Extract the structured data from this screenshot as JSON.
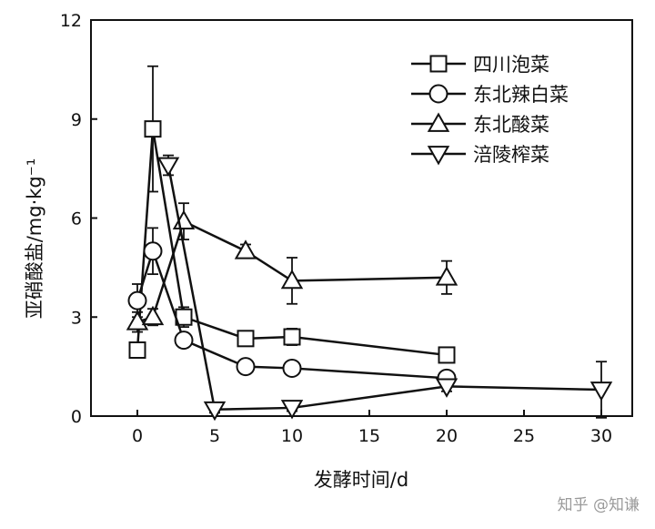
{
  "chart_data": {
    "type": "line",
    "xlabel": "发酵时间/d",
    "ylabel": "亚硝酸盐/mg·kg⁻¹",
    "xlim": [
      -3,
      32
    ],
    "ylim": [
      0,
      12
    ],
    "xticks": [
      0,
      5,
      10,
      15,
      20,
      25,
      30
    ],
    "yticks": [
      0,
      3,
      6,
      9,
      12
    ],
    "legend_position": "top-right",
    "grid": false,
    "series": [
      {
        "name": "四川泡菜",
        "marker": "square",
        "points": [
          {
            "x": 0,
            "y": 2.0,
            "err": 0
          },
          {
            "x": 1,
            "y": 8.7,
            "err": 1.9
          },
          {
            "x": 3,
            "y": 3.0,
            "err": 0.3
          },
          {
            "x": 7,
            "y": 2.35,
            "err": 0.2
          },
          {
            "x": 10,
            "y": 2.4,
            "err": 0.25
          },
          {
            "x": 20,
            "y": 1.85,
            "err": 0.2
          }
        ]
      },
      {
        "name": "东北辣白菜",
        "marker": "circle",
        "points": [
          {
            "x": 0,
            "y": 3.5,
            "err": 0.5
          },
          {
            "x": 1,
            "y": 5.0,
            "err": 0.7
          },
          {
            "x": 3,
            "y": 2.3,
            "err": 0.15
          },
          {
            "x": 7,
            "y": 1.5,
            "err": 0.15
          },
          {
            "x": 10,
            "y": 1.45,
            "err": 0.15
          },
          {
            "x": 20,
            "y": 1.15,
            "err": 0.15
          }
        ]
      },
      {
        "name": "东北酸菜",
        "marker": "triangle-up",
        "points": [
          {
            "x": 0,
            "y": 2.85,
            "err": 0.3
          },
          {
            "x": 1,
            "y": 3.0,
            "err": 0.25
          },
          {
            "x": 3,
            "y": 5.9,
            "err": 0.55
          },
          {
            "x": 7,
            "y": 5.0,
            "err": 0.2
          },
          {
            "x": 10,
            "y": 4.1,
            "err": 0.7
          },
          {
            "x": 20,
            "y": 4.2,
            "err": 0.5
          }
        ]
      },
      {
        "name": "涪陵榨菜",
        "marker": "triangle-down",
        "points": [
          {
            "x": 2,
            "y": 7.6,
            "err": 0.3
          },
          {
            "x": 5,
            "y": 0.2,
            "err": 0.1
          },
          {
            "x": 10,
            "y": 0.25,
            "err": 0.1
          },
          {
            "x": 20,
            "y": 0.9,
            "err": 0.15
          },
          {
            "x": 30,
            "y": 0.8,
            "err": 0.85
          }
        ]
      }
    ]
  },
  "watermark": "知乎 @知谦"
}
